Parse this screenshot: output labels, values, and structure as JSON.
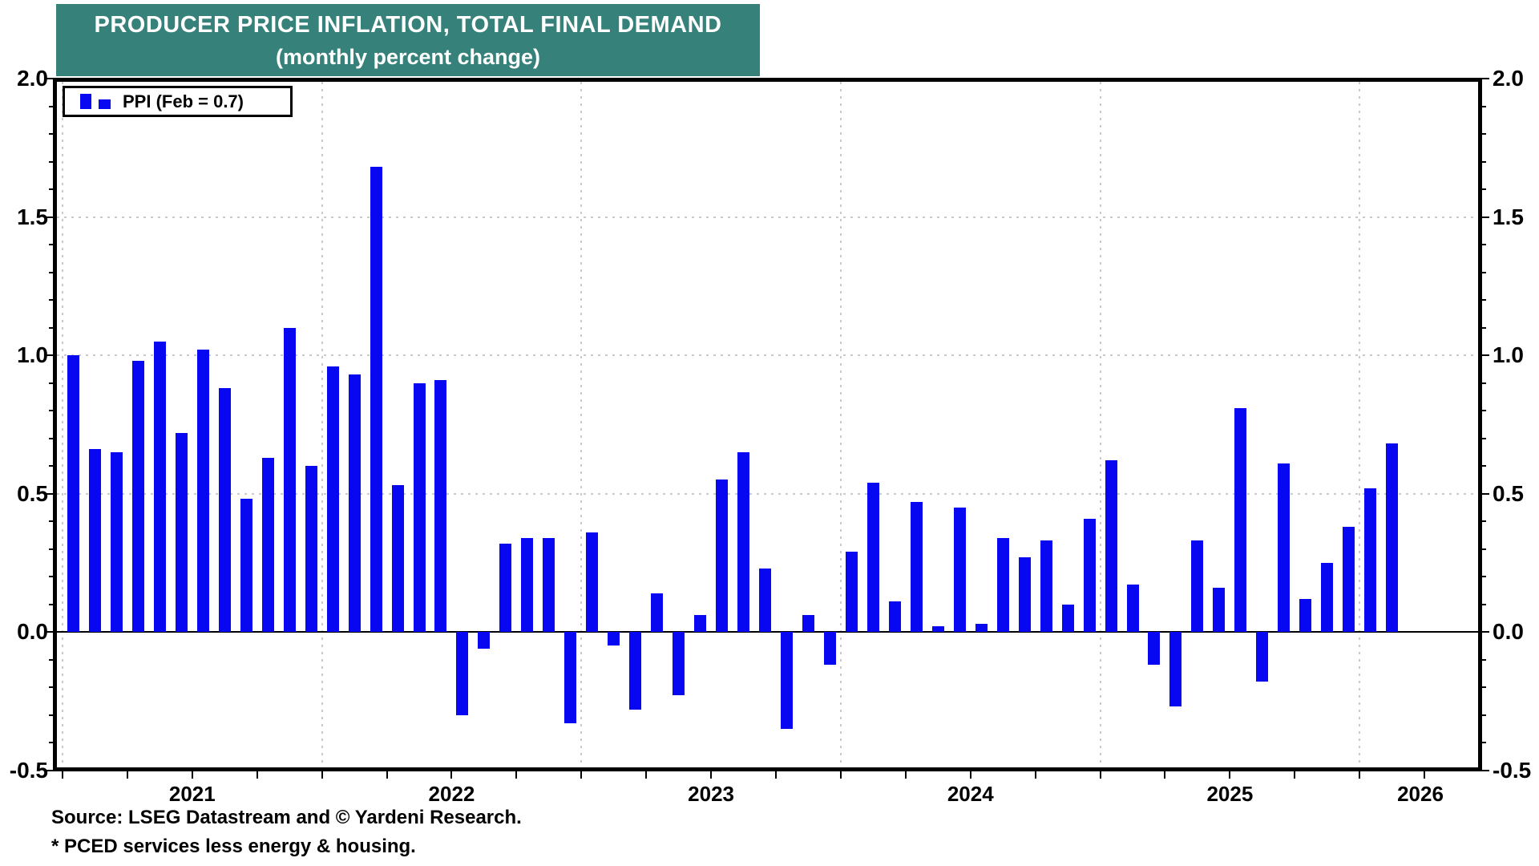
{
  "title": {
    "line1": "PRODUCER PRICE INFLATION, TOTAL FINAL DEMAND",
    "line2": "(monthly percent change)"
  },
  "legend": {
    "label": "PPI (Feb = 0.7)"
  },
  "source": {
    "line1": "Source: LSEG Datastream and © Yardeni Research.",
    "line2": "* PCED services less energy & housing."
  },
  "axes": {
    "y_tick_labels": [
      "2.0",
      "1.5",
      "1.0",
      "0.5",
      "0.0",
      "-0.5"
    ],
    "y_tick_values": [
      2.0,
      1.5,
      1.0,
      0.5,
      0.0,
      -0.5
    ],
    "x_year_labels": [
      "2021",
      "2022",
      "2023",
      "2024",
      "2025",
      "2026"
    ]
  },
  "colors": {
    "bar": "#0707F2",
    "title_bg": "#36827A",
    "grid": "#CACACA",
    "frame": "#000000"
  },
  "chart_data": {
    "type": "bar",
    "title": "PRODUCER PRICE INFLATION, TOTAL FINAL DEMAND (monthly percent change)",
    "ylabel": "percent",
    "ylim": [
      -0.5,
      2.0
    ],
    "grid": "dotted, horizontal at 0.5 intervals and vertical at each January",
    "legend_position": "top-left inside plot",
    "years_order": [
      "2021",
      "2022",
      "2023",
      "2024",
      "2025",
      "2026"
    ],
    "series": [
      {
        "name": "PPI",
        "monthly_values_by_year": {
          "2021": [
            1.0,
            0.66,
            0.65,
            0.98,
            1.05,
            0.72,
            1.02,
            0.88,
            0.48,
            0.63,
            1.1,
            0.6
          ],
          "2022": [
            0.96,
            0.93,
            1.68,
            0.53,
            0.9,
            0.91,
            -0.3,
            -0.06,
            0.32,
            0.34,
            0.34,
            -0.33
          ],
          "2023": [
            0.36,
            -0.05,
            -0.28,
            0.14,
            -0.23,
            0.06,
            0.55,
            0.65,
            0.23,
            -0.35,
            0.06,
            -0.12
          ],
          "2024": [
            0.29,
            0.54,
            0.11,
            0.47,
            0.02,
            0.45,
            0.03,
            0.34,
            0.27,
            0.33,
            0.1,
            0.41
          ],
          "2025": [
            0.62,
            0.17,
            -0.12,
            -0.27,
            0.33,
            0.16,
            0.81,
            -0.18,
            0.61,
            0.12,
            0.25,
            0.38
          ],
          "2026": [
            0.52,
            0.68
          ]
        }
      }
    ]
  }
}
